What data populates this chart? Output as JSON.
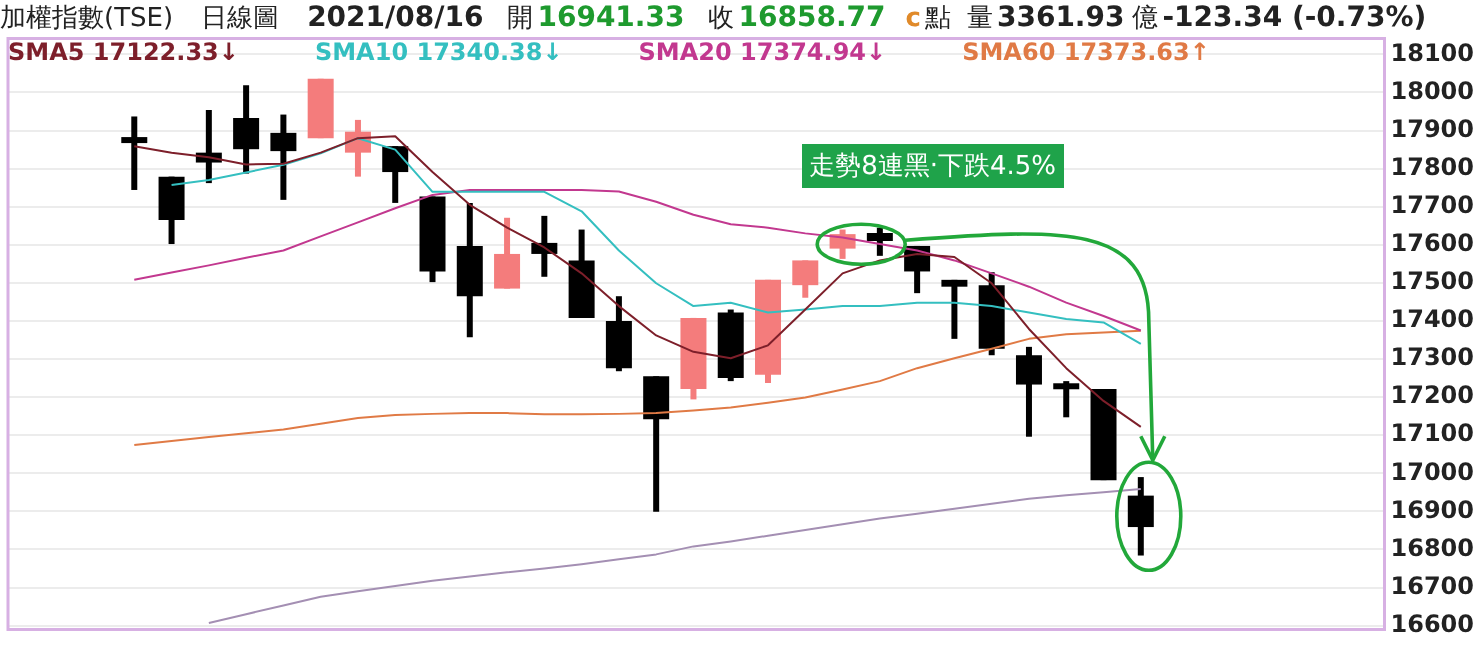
{
  "chart_data": {
    "type": "candlestick",
    "title": "加權指數(TSE)",
    "annotations": [
      "日線圖",
      "2021/08/16",
      "開",
      "16941.33",
      "收",
      "16858.77",
      "c",
      "點",
      "量",
      "3361.93",
      "億",
      "-123.34 (-0.73%)",
      "走勢8連黑‧下跌4.5%"
    ],
    "categories": [
      null,
      null,
      null,
      null,
      null,
      null,
      null,
      null,
      null,
      null,
      null,
      null,
      null,
      null,
      null,
      null,
      null,
      null,
      null,
      null,
      null,
      null,
      null,
      null,
      null,
      null,
      null,
      null
    ],
    "ohlc": [
      [
        17878,
        17937,
        17744,
        17872
      ],
      [
        17779,
        17779,
        17602,
        17665
      ],
      [
        17842,
        17954,
        17762,
        17816
      ],
      [
        17933,
        18019,
        17787,
        17851
      ],
      [
        17894,
        17942,
        17718,
        17846
      ],
      [
        17880,
        18036,
        17880,
        18036
      ],
      [
        17842,
        17928,
        17779,
        17897
      ],
      [
        17859,
        17859,
        17710,
        17791
      ],
      [
        17727,
        17727,
        17502,
        17530
      ],
      [
        17597,
        17710,
        17357,
        17465
      ],
      [
        17485,
        17671,
        17485,
        17576
      ],
      [
        17605,
        17676,
        17516,
        17576
      ],
      [
        17559,
        17640,
        17408,
        17408
      ],
      [
        17400,
        17465,
        17268,
        17276
      ],
      [
        17255,
        17255,
        16899,
        17142
      ],
      [
        17221,
        17408,
        17194,
        17408
      ],
      [
        17422,
        17430,
        17242,
        17250
      ],
      [
        17259,
        17508,
        17237,
        17508
      ],
      [
        17494,
        17559,
        17461,
        17559
      ],
      [
        17590,
        17640,
        17563,
        17628
      ],
      [
        17631,
        17645,
        17571,
        17610
      ],
      [
        17597,
        17597,
        17473,
        17530
      ],
      [
        17508,
        17508,
        17353,
        17490
      ],
      [
        17494,
        17528,
        17310,
        17327
      ],
      [
        17310,
        17332,
        17096,
        17233
      ],
      [
        17233,
        17242,
        17147,
        17224
      ],
      [
        17221,
        17221,
        16982,
        16982
      ],
      [
        16941.33,
        16990,
        16784,
        16858.77
      ]
    ],
    "colors": [
      "#000000",
      "#000000",
      "#000000",
      "#000000",
      "#000000",
      "#f47c7c",
      "#f47c7c",
      "#000000",
      "#000000",
      "#000000",
      "#f47c7c",
      "#000000",
      "#000000",
      "#000000",
      "#000000",
      "#f47c7c",
      "#000000",
      "#f47c7c",
      "#f47c7c",
      "#f47c7c",
      "#000000",
      "#000000",
      "#000000",
      "#000000",
      "#000000",
      "#000000",
      "#000000",
      "#000000"
    ],
    "series": [
      {
        "type": "line",
        "name": "SMA5 17122.33↓",
        "color": "#7d1f2a",
        "values": [
          17859,
          17842,
          17830,
          17811,
          17813,
          17842,
          17880,
          17885,
          17791,
          17705,
          17645,
          17593,
          17525,
          17439,
          17362,
          17319,
          17302,
          17336,
          17430,
          17525,
          17559,
          17576,
          17568,
          17499,
          17379,
          17276,
          17190,
          17122
        ]
      },
      {
        "type": "line",
        "name": "SMA10 17340.38↓",
        "color": "#34bfc0",
        "values": [
          null,
          17757,
          17770,
          17790,
          17810,
          17840,
          17880,
          17850,
          17739,
          17739,
          17739,
          17739,
          17688,
          17585,
          17499,
          17439,
          17448,
          17422,
          17430,
          17439,
          17439,
          17448,
          17448,
          17439,
          17422,
          17405,
          17396,
          17340
        ]
      },
      {
        "type": "line",
        "name": "SMA20 17374.94↓",
        "color": "#c2388f",
        "values": [
          17508,
          17527,
          17546,
          17566,
          17585,
          17622,
          17659,
          17696,
          17731,
          17744,
          17744,
          17744,
          17744,
          17740,
          17713,
          17679,
          17654,
          17645,
          17630,
          17619,
          17602,
          17585,
          17559,
          17525,
          17490,
          17448,
          17413,
          17375
        ]
      },
      {
        "type": "line",
        "name": "SMA60 17373.63↑",
        "color": "#e07a45",
        "values": [
          17074,
          17085,
          17095,
          17105,
          17115,
          17130,
          17145,
          17153,
          17156,
          17158,
          17158,
          17155,
          17155,
          17156,
          17158,
          17165,
          17173,
          17185,
          17199,
          17220,
          17242,
          17276,
          17302,
          17327,
          17353,
          17365,
          17370,
          17374
        ]
      },
      {
        "type": "line",
        "color": "#a48fb3",
        "values": [
          null,
          null,
          16607,
          16630,
          16653,
          16676,
          16690,
          16704,
          16718,
          16729,
          16740,
          16750,
          16761,
          16774,
          16787,
          16808,
          16821,
          16836,
          16851,
          16866,
          16881,
          16894,
          16907,
          16920,
          16933,
          16942,
          16950,
          16959
        ]
      }
    ],
    "ylim": [
      16600,
      18100
    ],
    "yticks": [
      16600,
      16700,
      16800,
      16900,
      17000,
      17100,
      17200,
      17300,
      17400,
      17500,
      17600,
      17700,
      17800,
      17900,
      18000,
      18100
    ],
    "grid": "y",
    "legend": "top left"
  }
}
